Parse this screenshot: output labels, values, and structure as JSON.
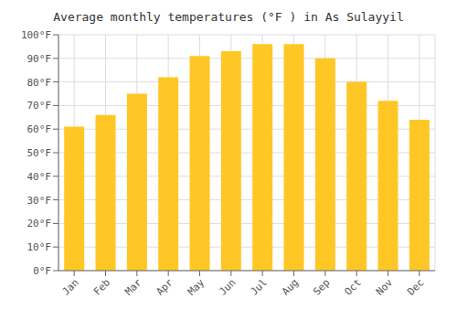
{
  "chart_data": {
    "type": "bar",
    "title": "Average monthly temperatures (°F ) in As Sulayyil",
    "categories": [
      "Jan",
      "Feb",
      "Mar",
      "Apr",
      "May",
      "Jun",
      "Jul",
      "Aug",
      "Sep",
      "Oct",
      "Nov",
      "Dec"
    ],
    "values": [
      61,
      66,
      75,
      82,
      91,
      93,
      96,
      96,
      90,
      80,
      72,
      64
    ],
    "color": "#FFC726",
    "ylim": [
      0,
      100
    ],
    "yticks": [
      {
        "value": 0,
        "label": "0°F"
      },
      {
        "value": 10,
        "label": "10°F"
      },
      {
        "value": 20,
        "label": "20°F"
      },
      {
        "value": 30,
        "label": "30°F"
      },
      {
        "value": 40,
        "label": "40°F"
      },
      {
        "value": 50,
        "label": "50°F"
      },
      {
        "value": 60,
        "label": "60°F"
      },
      {
        "value": 70,
        "label": "70°F"
      },
      {
        "value": 80,
        "label": "80°F"
      },
      {
        "value": 90,
        "label": "90°F"
      },
      {
        "value": 100,
        "label": "100°F"
      }
    ],
    "grid": true
  }
}
